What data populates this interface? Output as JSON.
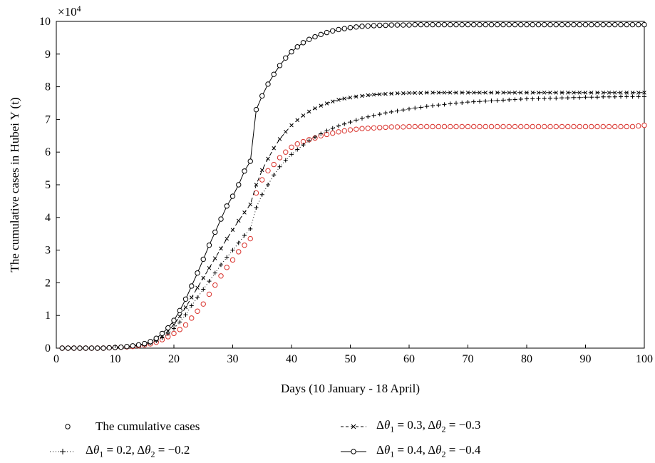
{
  "chart_data": {
    "type": "scatter",
    "title": "",
    "xlabel": "Days (10 January - 18 April)",
    "ylabel": "The cumulative cases in Hubei Y (t)",
    "y_multiplier_label": "×10⁴",
    "xlim": [
      0,
      100
    ],
    "ylim": [
      0,
      10
    ],
    "x_ticks": [
      0,
      10,
      20,
      30,
      40,
      50,
      60,
      70,
      80,
      90,
      100
    ],
    "y_ticks": [
      0,
      1,
      2,
      3,
      4,
      5,
      6,
      7,
      8,
      9,
      10
    ],
    "x_tick_labels": [
      "0",
      "10",
      "20",
      "30",
      "40",
      "50",
      "60",
      "70",
      "80",
      "90",
      "100"
    ],
    "y_tick_labels": [
      "0",
      "1",
      "2",
      "3",
      "4",
      "5",
      "6",
      "7",
      "8",
      "9",
      "10"
    ],
    "grid": false,
    "legend_position": "bottom",
    "series": [
      {
        "name": "The cumulative cases",
        "style": "circle-markers",
        "color": "#d9312b",
        "x": [
          1,
          2,
          3,
          4,
          5,
          6,
          7,
          8,
          9,
          10,
          11,
          12,
          13,
          14,
          15,
          16,
          17,
          18,
          19,
          20,
          21,
          22,
          23,
          24,
          25,
          26,
          27,
          28,
          29,
          30,
          31,
          32,
          33,
          34,
          35,
          36,
          37,
          38,
          39,
          40,
          41,
          42,
          43,
          44,
          45,
          46,
          47,
          48,
          49,
          50,
          51,
          52,
          53,
          54,
          55,
          56,
          57,
          58,
          59,
          60,
          61,
          62,
          63,
          64,
          65,
          66,
          67,
          68,
          69,
          70,
          71,
          72,
          73,
          74,
          75,
          76,
          77,
          78,
          79,
          80,
          81,
          82,
          83,
          84,
          85,
          86,
          87,
          88,
          89,
          90,
          91,
          92,
          93,
          94,
          95,
          96,
          97,
          98,
          99,
          100
        ],
        "y": [
          0.0,
          0.0,
          0.0,
          0.0,
          0.0,
          0.0,
          0.0,
          0.0,
          0.01,
          0.02,
          0.03,
          0.04,
          0.05,
          0.07,
          0.1,
          0.13,
          0.18,
          0.26,
          0.35,
          0.45,
          0.57,
          0.71,
          0.92,
          1.13,
          1.35,
          1.65,
          1.93,
          2.21,
          2.47,
          2.7,
          2.95,
          3.15,
          3.35,
          4.75,
          5.15,
          5.43,
          5.62,
          5.83,
          6.0,
          6.15,
          6.25,
          6.32,
          6.38,
          6.43,
          6.5,
          6.54,
          6.58,
          6.62,
          6.65,
          6.68,
          6.7,
          6.72,
          6.73,
          6.74,
          6.75,
          6.76,
          6.77,
          6.77,
          6.77,
          6.78,
          6.78,
          6.78,
          6.78,
          6.78,
          6.78,
          6.78,
          6.78,
          6.78,
          6.78,
          6.78,
          6.78,
          6.78,
          6.78,
          6.78,
          6.78,
          6.78,
          6.78,
          6.78,
          6.78,
          6.78,
          6.78,
          6.78,
          6.78,
          6.78,
          6.78,
          6.78,
          6.78,
          6.78,
          6.78,
          6.78,
          6.78,
          6.78,
          6.78,
          6.78,
          6.78,
          6.78,
          6.78,
          6.78,
          6.8,
          6.82
        ]
      },
      {
        "name": "Δθ1 = 0.2, Δθ2 = −0.2",
        "style": "plus-markers-dotted",
        "color": "#000000",
        "x": [
          1,
          2,
          3,
          4,
          5,
          6,
          7,
          8,
          9,
          10,
          11,
          12,
          13,
          14,
          15,
          16,
          17,
          18,
          19,
          20,
          21,
          22,
          23,
          24,
          25,
          26,
          27,
          28,
          29,
          30,
          31,
          32,
          33,
          34,
          35,
          36,
          37,
          38,
          39,
          40,
          41,
          42,
          43,
          44,
          45,
          46,
          47,
          48,
          49,
          50,
          51,
          52,
          53,
          54,
          55,
          56,
          57,
          58,
          59,
          60,
          61,
          62,
          63,
          64,
          65,
          66,
          67,
          68,
          69,
          70,
          71,
          72,
          73,
          74,
          75,
          76,
          77,
          78,
          79,
          80,
          81,
          82,
          83,
          84,
          85,
          86,
          87,
          88,
          89,
          90,
          91,
          92,
          93,
          94,
          95,
          96,
          97,
          98,
          99,
          100
        ],
        "y": [
          0.0,
          0.0,
          0.0,
          0.0,
          0.0,
          0.0,
          0.0,
          0.0,
          0.01,
          0.02,
          0.03,
          0.04,
          0.06,
          0.08,
          0.11,
          0.15,
          0.22,
          0.32,
          0.44,
          0.6,
          0.8,
          1.02,
          1.3,
          1.55,
          1.8,
          2.05,
          2.3,
          2.55,
          2.78,
          3.0,
          3.22,
          3.45,
          3.65,
          4.3,
          4.7,
          5.0,
          5.3,
          5.55,
          5.75,
          5.93,
          6.08,
          6.22,
          6.35,
          6.46,
          6.56,
          6.65,
          6.73,
          6.8,
          6.86,
          6.92,
          6.98,
          7.03,
          7.08,
          7.12,
          7.16,
          7.2,
          7.23,
          7.26,
          7.29,
          7.32,
          7.35,
          7.37,
          7.4,
          7.42,
          7.44,
          7.46,
          7.48,
          7.5,
          7.51,
          7.53,
          7.54,
          7.55,
          7.56,
          7.57,
          7.58,
          7.59,
          7.6,
          7.61,
          7.62,
          7.63,
          7.63,
          7.64,
          7.64,
          7.65,
          7.65,
          7.66,
          7.66,
          7.67,
          7.67,
          7.68,
          7.68,
          7.68,
          7.69,
          7.69,
          7.69,
          7.7,
          7.7,
          7.7,
          7.7,
          7.7
        ]
      },
      {
        "name": "Δθ1 = 0.3, Δθ2 = −0.3",
        "style": "x-markers-dashed",
        "color": "#000000",
        "x": [
          1,
          2,
          3,
          4,
          5,
          6,
          7,
          8,
          9,
          10,
          11,
          12,
          13,
          14,
          15,
          16,
          17,
          18,
          19,
          20,
          21,
          22,
          23,
          24,
          25,
          26,
          27,
          28,
          29,
          30,
          31,
          32,
          33,
          34,
          35,
          36,
          37,
          38,
          39,
          40,
          41,
          42,
          43,
          44,
          45,
          46,
          47,
          48,
          49,
          50,
          51,
          52,
          53,
          54,
          55,
          56,
          57,
          58,
          59,
          60,
          61,
          62,
          63,
          64,
          65,
          66,
          67,
          68,
          69,
          70,
          71,
          72,
          73,
          74,
          75,
          76,
          77,
          78,
          79,
          80,
          81,
          82,
          83,
          84,
          85,
          86,
          87,
          88,
          89,
          90,
          91,
          92,
          93,
          94,
          95,
          96,
          97,
          98,
          99,
          100
        ],
        "y": [
          0.0,
          0.0,
          0.0,
          0.0,
          0.0,
          0.0,
          0.0,
          0.0,
          0.01,
          0.02,
          0.03,
          0.04,
          0.06,
          0.08,
          0.12,
          0.17,
          0.25,
          0.37,
          0.52,
          0.72,
          0.97,
          1.25,
          1.55,
          1.85,
          2.15,
          2.45,
          2.75,
          3.05,
          3.35,
          3.62,
          3.9,
          4.15,
          4.4,
          5.0,
          5.45,
          5.8,
          6.12,
          6.4,
          6.62,
          6.82,
          6.98,
          7.12,
          7.24,
          7.34,
          7.42,
          7.49,
          7.55,
          7.6,
          7.64,
          7.67,
          7.7,
          7.72,
          7.74,
          7.76,
          7.77,
          7.78,
          7.79,
          7.8,
          7.8,
          7.81,
          7.81,
          7.81,
          7.82,
          7.82,
          7.82,
          7.82,
          7.82,
          7.82,
          7.82,
          7.82,
          7.82,
          7.82,
          7.82,
          7.82,
          7.82,
          7.82,
          7.82,
          7.82,
          7.82,
          7.82,
          7.82,
          7.82,
          7.82,
          7.82,
          7.82,
          7.82,
          7.82,
          7.82,
          7.82,
          7.82,
          7.82,
          7.82,
          7.82,
          7.82,
          7.82,
          7.82,
          7.82,
          7.82,
          7.82,
          7.82
        ]
      },
      {
        "name": "Δθ1 = 0.4, Δθ2 = −0.4",
        "style": "circle-markers-solid",
        "color": "#000000",
        "x": [
          1,
          2,
          3,
          4,
          5,
          6,
          7,
          8,
          9,
          10,
          11,
          12,
          13,
          14,
          15,
          16,
          17,
          18,
          19,
          20,
          21,
          22,
          23,
          24,
          25,
          26,
          27,
          28,
          29,
          30,
          31,
          32,
          33,
          34,
          35,
          36,
          37,
          38,
          39,
          40,
          41,
          42,
          43,
          44,
          45,
          46,
          47,
          48,
          49,
          50,
          51,
          52,
          53,
          54,
          55,
          56,
          57,
          58,
          59,
          60,
          61,
          62,
          63,
          64,
          65,
          66,
          67,
          68,
          69,
          70,
          71,
          72,
          73,
          74,
          75,
          76,
          77,
          78,
          79,
          80,
          81,
          82,
          83,
          84,
          85,
          86,
          87,
          88,
          89,
          90,
          91,
          92,
          93,
          94,
          95,
          96,
          97,
          98,
          99,
          100
        ],
        "y": [
          0.0,
          0.0,
          0.0,
          0.0,
          0.0,
          0.0,
          0.0,
          0.0,
          0.01,
          0.02,
          0.03,
          0.05,
          0.07,
          0.1,
          0.14,
          0.2,
          0.3,
          0.45,
          0.62,
          0.85,
          1.15,
          1.5,
          1.9,
          2.3,
          2.72,
          3.15,
          3.55,
          3.95,
          4.35,
          4.65,
          5.0,
          5.42,
          5.72,
          7.3,
          7.72,
          8.08,
          8.38,
          8.65,
          8.88,
          9.07,
          9.22,
          9.35,
          9.45,
          9.53,
          9.6,
          9.66,
          9.71,
          9.75,
          9.78,
          9.81,
          9.83,
          9.85,
          9.86,
          9.87,
          9.88,
          9.88,
          9.89,
          9.89,
          9.89,
          9.89,
          9.9,
          9.9,
          9.9,
          9.9,
          9.9,
          9.9,
          9.9,
          9.9,
          9.9,
          9.9,
          9.9,
          9.9,
          9.9,
          9.9,
          9.9,
          9.9,
          9.9,
          9.9,
          9.9,
          9.9,
          9.9,
          9.9,
          9.9,
          9.9,
          9.9,
          9.9,
          9.9,
          9.9,
          9.9,
          9.9,
          9.9,
          9.9,
          9.9,
          9.9,
          9.9,
          9.9,
          9.9,
          9.9,
          9.9,
          9.9
        ]
      }
    ]
  },
  "legend": {
    "items": [
      {
        "label": "The cumulative cases",
        "marker": "circle"
      },
      {
        "label": "Δθ1 = 0.3, Δθ2 = −0.3",
        "marker": "x-dashed"
      },
      {
        "label": "Δθ1 = 0.2, Δθ2 = −0.2",
        "marker": "plus-dotted"
      },
      {
        "label": "Δθ1 = 0.4, Δθ2 = −0.4",
        "marker": "circle-solid"
      }
    ]
  }
}
